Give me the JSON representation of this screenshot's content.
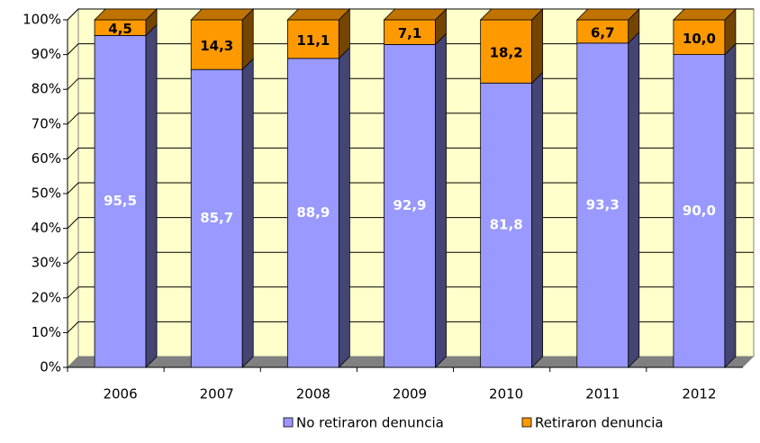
{
  "chart_data": {
    "type": "bar",
    "stacked": true,
    "categories": [
      "2006",
      "2007",
      "2008",
      "2009",
      "2010",
      "2011",
      "2012"
    ],
    "series": [
      {
        "name": "No retiraron denuncia",
        "color": "#9999ff",
        "values": [
          95.5,
          85.7,
          88.9,
          92.9,
          81.8,
          93.3,
          90.0
        ],
        "value_labels": [
          "95,5",
          "85,7",
          "88,9",
          "92,9",
          "81,8",
          "93,3",
          "90,0"
        ]
      },
      {
        "name": "Retiraron denuncia",
        "color": "#ff9900",
        "values": [
          4.5,
          14.3,
          11.1,
          7.1,
          18.2,
          6.7,
          10.0
        ],
        "value_labels": [
          "4,5",
          "14,3",
          "11,1",
          "7,1",
          "18,2",
          "6,7",
          "10,0"
        ]
      }
    ],
    "ylim": [
      0,
      100
    ],
    "yticks": [
      {
        "value": 0,
        "label": "0%"
      },
      {
        "value": 10,
        "label": "10%"
      },
      {
        "value": 20,
        "label": "20%"
      },
      {
        "value": 30,
        "label": "30%"
      },
      {
        "value": 40,
        "label": "40%"
      },
      {
        "value": 50,
        "label": "50%"
      },
      {
        "value": 60,
        "label": "60%"
      },
      {
        "value": 70,
        "label": "70%"
      },
      {
        "value": 80,
        "label": "80%"
      },
      {
        "value": 90,
        "label": "90%"
      },
      {
        "value": 100,
        "label": "100%"
      }
    ],
    "grid": true,
    "legend": "bottom"
  }
}
